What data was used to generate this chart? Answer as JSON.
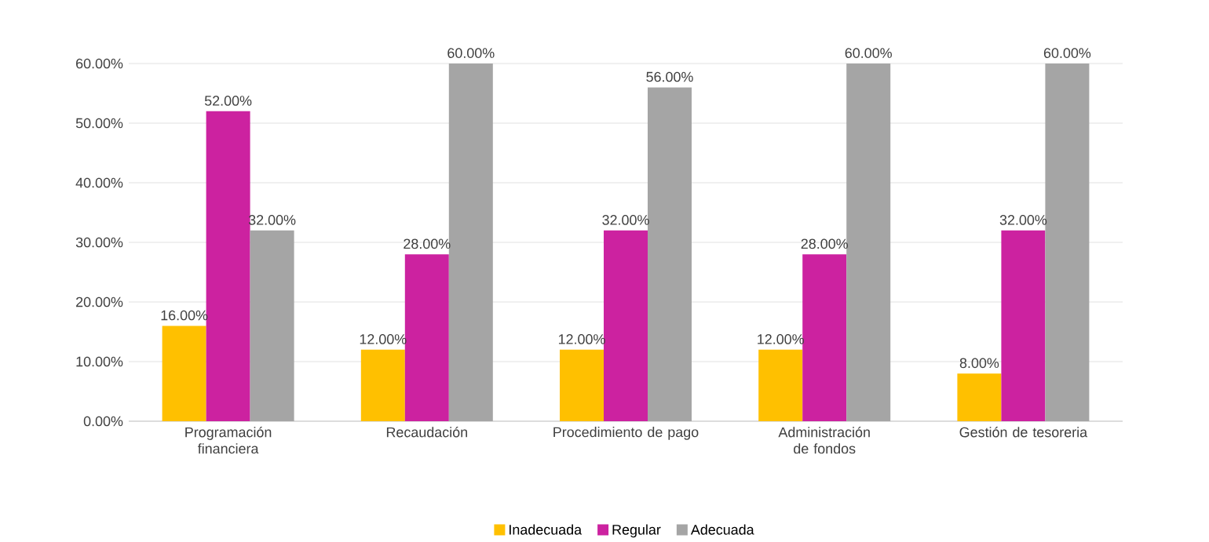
{
  "chart_data": {
    "type": "bar",
    "categories": [
      "Programación financiera",
      "Recaudación",
      "Procedimiento de pago",
      "Administración de fondos",
      "Gestión de tesoreria"
    ],
    "series": [
      {
        "name": "Inadecuada",
        "color": "#ffc000",
        "values": [
          16,
          12,
          12,
          12,
          8
        ],
        "value_labels": [
          "16.00%",
          "12.00%",
          "12.00%",
          "12.00%",
          "8.00%"
        ]
      },
      {
        "name": "Regular",
        "color": "#cc22a0",
        "values": [
          52,
          28,
          32,
          28,
          32
        ],
        "value_labels": [
          "52.00%",
          "28.00%",
          "32.00%",
          "28.00%",
          "32.00%"
        ]
      },
      {
        "name": "Adecuada",
        "color": "#a5a5a5",
        "values": [
          32,
          60,
          56,
          60,
          60
        ],
        "value_labels": [
          "32.00%",
          "60.00%",
          "56.00%",
          "60.00%",
          "60.00%"
        ]
      }
    ],
    "ylim": [
      0,
      60
    ],
    "yticks": [
      {
        "value": 0,
        "label": "0.00%"
      },
      {
        "value": 10,
        "label": "10.00%"
      },
      {
        "value": 20,
        "label": "20.00%"
      },
      {
        "value": 30,
        "label": "30.00%"
      },
      {
        "value": 40,
        "label": "40.00%"
      },
      {
        "value": 50,
        "label": "50.00%"
      },
      {
        "value": 60,
        "label": "60.00%"
      }
    ],
    "grid": "y",
    "legend": "bottom"
  }
}
